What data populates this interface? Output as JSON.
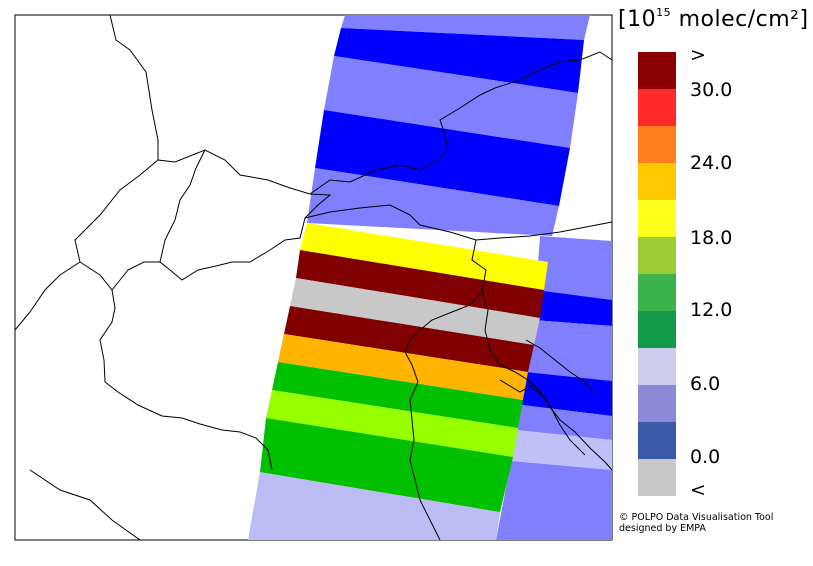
{
  "legend": {
    "unit_prefix": "[10",
    "unit_exp": "15",
    "unit_suffix": " molec/cm²]",
    "tick_labels": [
      ">",
      "30.0",
      "24.0",
      "18.0",
      "12.0",
      "6.0",
      "0.0",
      "<"
    ],
    "colors": [
      "#8b0000",
      "#ff2a2a",
      "#ff7f1e",
      "#ffc800",
      "#ffff1e",
      "#9acd32",
      "#3cb44b",
      "#129a4a",
      "#ccccec",
      "#8a8ad6",
      "#3a5aa8",
      "#c8c8c8"
    ]
  },
  "map": {
    "swath_fill_east": "#8080ff",
    "swath_fill_west": "#bcbcf5"
  },
  "credit": {
    "line1": "© POLPO Data Visualisation Tool",
    "line2": "  designed by EMPA"
  }
}
